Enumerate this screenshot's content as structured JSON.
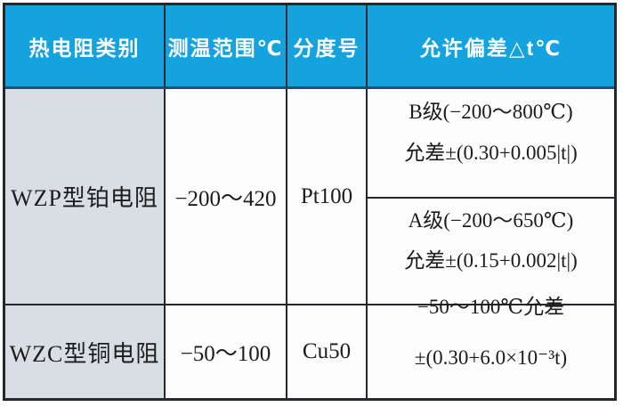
{
  "table": {
    "header": {
      "col1": "热电阻类别",
      "col2": "测温范围℃",
      "col3": "分度号",
      "col4": "允许偏差△t℃"
    },
    "rows": {
      "wzp": {
        "type": "WZP型铂电阻",
        "range": "−200～420",
        "index_no": "Pt100",
        "tolerance_b": {
          "line1": "B级(−200～800℃)",
          "line2": "允差±(0.30+0.005|t|)"
        },
        "tolerance_a": {
          "line1": "A级(−200～650℃)",
          "line2": "允差±(0.15+0.002|t|)"
        }
      },
      "wzc": {
        "type": "WZC型铜电阻",
        "range": "−50～100",
        "index_no": "Cu50",
        "tolerance": {
          "line1": "−50～100℃允差",
          "line2": "±(0.30+6.0×10⁻³t)"
        }
      }
    },
    "colors": {
      "header_bg": "#14a3df",
      "header_text": "#ffffff",
      "label_bg": "#d9dee4",
      "cell_bg": "#fdfdfe",
      "border": "#23272e",
      "body_text": "#1c1c1c"
    }
  },
  "chart_data": {
    "type": "table",
    "title": "",
    "columns": [
      "热电阻类别",
      "测温范围℃",
      "分度号",
      "允许偏差△t℃"
    ],
    "rows": [
      [
        "WZP型铂电阻",
        "−200～420",
        "Pt100",
        "B级(−200～800℃) 允差±(0.30+0.005|t|)；A级(−200～650℃) 允差±(0.15+0.002|t|)"
      ],
      [
        "WZC型铜电阻",
        "−50～100",
        "Cu50",
        "−50～100℃允差 ±(0.30+6.0×10⁻³t)"
      ]
    ]
  }
}
